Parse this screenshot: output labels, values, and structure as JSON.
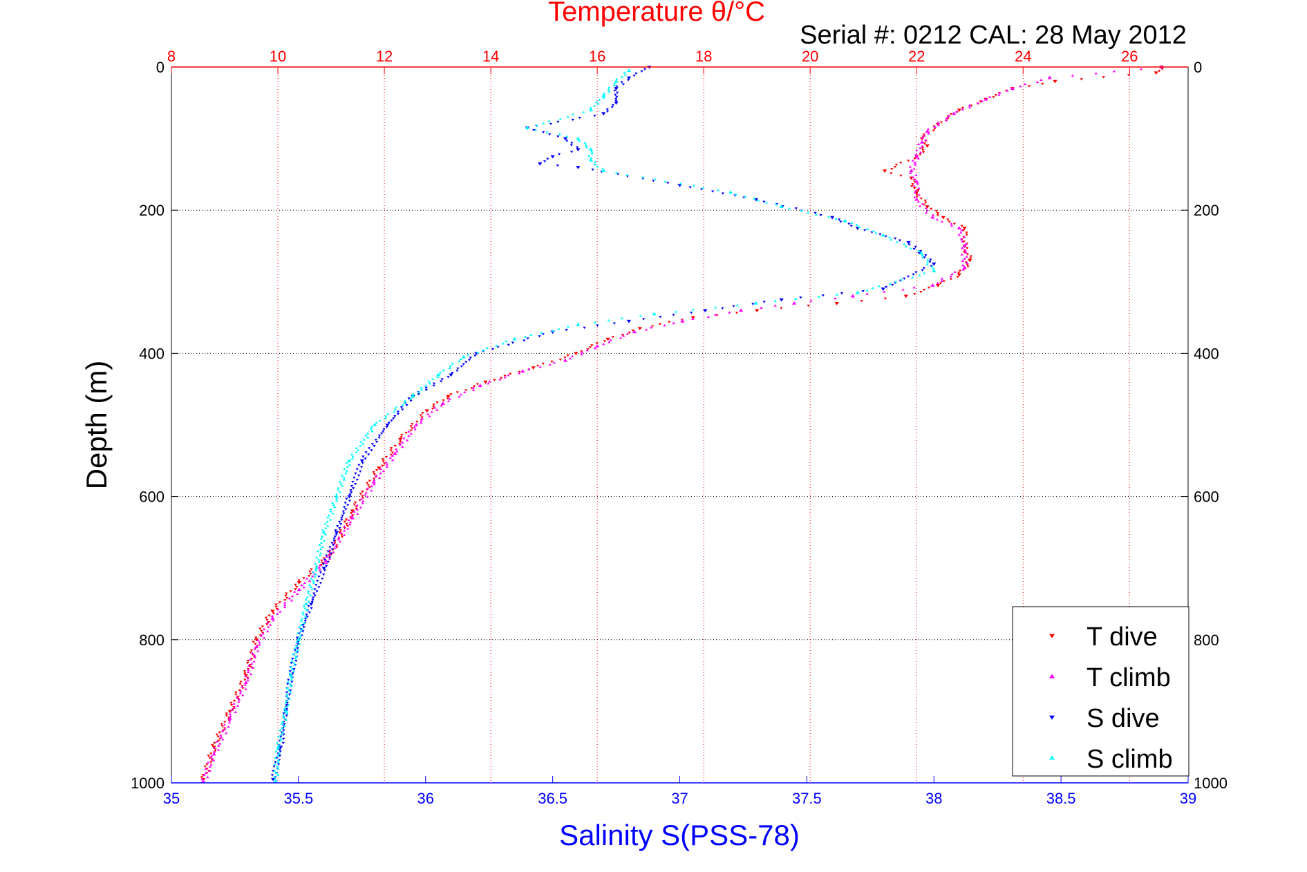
{
  "chart_data": {
    "type": "scatter",
    "title": "Temperature θ/°C",
    "subtitle": "Serial #: 0212  CAL: 28 May 2012",
    "ylabel": "Depth (m)",
    "xlabel": "Salinity S(PSS-78)",
    "ylim": [
      1000,
      0
    ],
    "y_ticks": [
      "0",
      "200",
      "400",
      "600",
      "800",
      "1000"
    ],
    "x_bottom": {
      "label": "Salinity S(PSS-78)",
      "lim": [
        35,
        39
      ],
      "ticks": [
        "35",
        "35.5",
        "36",
        "36.5",
        "37",
        "37.5",
        "38",
        "38.5",
        "39"
      ]
    },
    "x_top": {
      "label": "Temperature θ/°C",
      "lim": [
        8,
        27.1
      ],
      "ticks": [
        "8",
        "10",
        "12",
        "14",
        "16",
        "18",
        "20",
        "22",
        "24",
        "26"
      ]
    },
    "grid": true,
    "legend_position": "bottom-right",
    "series": [
      {
        "name": "T dive",
        "axis": "temperature",
        "color": "#ff0000",
        "marker": "triangle-down",
        "points": [
          [
            26.6,
            0
          ],
          [
            26.5,
            8
          ],
          [
            24.6,
            20
          ],
          [
            23.8,
            30
          ],
          [
            23.3,
            45
          ],
          [
            22.8,
            60
          ],
          [
            22.4,
            80
          ],
          [
            22.1,
            100
          ],
          [
            22.2,
            110
          ],
          [
            22.0,
            125
          ],
          [
            21.4,
            145
          ],
          [
            21.9,
            155
          ],
          [
            22.0,
            175
          ],
          [
            22.2,
            195
          ],
          [
            22.5,
            210
          ],
          [
            22.9,
            225
          ],
          [
            22.9,
            250
          ],
          [
            23.0,
            270
          ],
          [
            22.8,
            290
          ],
          [
            22.4,
            305
          ],
          [
            21.8,
            320
          ],
          [
            20.5,
            330
          ],
          [
            19.0,
            340
          ],
          [
            17.8,
            350
          ],
          [
            16.8,
            365
          ],
          [
            16.2,
            380
          ],
          [
            15.6,
            400
          ],
          [
            14.8,
            420
          ],
          [
            13.9,
            440
          ],
          [
            13.2,
            460
          ],
          [
            12.8,
            480
          ],
          [
            12.3,
            520
          ],
          [
            11.9,
            560
          ],
          [
            11.4,
            620
          ],
          [
            11.0,
            680
          ],
          [
            10.4,
            720
          ],
          [
            9.9,
            760
          ],
          [
            9.6,
            800
          ],
          [
            9.4,
            850
          ],
          [
            9.1,
            900
          ],
          [
            8.8,
            950
          ],
          [
            8.6,
            995
          ]
        ]
      },
      {
        "name": "T climb",
        "axis": "temperature",
        "color": "#ff00ff",
        "marker": "triangle-up",
        "points": [
          [
            26.6,
            0
          ],
          [
            24.5,
            15
          ],
          [
            23.8,
            30
          ],
          [
            23.3,
            45
          ],
          [
            22.7,
            65
          ],
          [
            22.2,
            90
          ],
          [
            22.1,
            105
          ],
          [
            22.0,
            125
          ],
          [
            21.9,
            145
          ],
          [
            22.0,
            160
          ],
          [
            22.0,
            185
          ],
          [
            22.3,
            210
          ],
          [
            22.8,
            225
          ],
          [
            22.9,
            250
          ],
          [
            22.9,
            280
          ],
          [
            22.3,
            305
          ],
          [
            20.8,
            320
          ],
          [
            19.7,
            330
          ],
          [
            18.7,
            340
          ],
          [
            17.6,
            355
          ],
          [
            16.7,
            370
          ],
          [
            16.0,
            390
          ],
          [
            15.4,
            410
          ],
          [
            14.6,
            425
          ],
          [
            13.8,
            445
          ],
          [
            13.1,
            470
          ],
          [
            12.6,
            500
          ],
          [
            12.2,
            540
          ],
          [
            11.8,
            580
          ],
          [
            11.4,
            630
          ],
          [
            10.9,
            690
          ],
          [
            10.4,
            730
          ],
          [
            9.9,
            770
          ],
          [
            9.6,
            810
          ],
          [
            9.4,
            860
          ],
          [
            9.1,
            910
          ],
          [
            8.8,
            960
          ],
          [
            8.6,
            998
          ]
        ]
      },
      {
        "name": "S dive",
        "axis": "salinity",
        "color": "#0000ff",
        "marker": "triangle-down",
        "points": [
          [
            36.88,
            0
          ],
          [
            36.8,
            15
          ],
          [
            36.75,
            30
          ],
          [
            36.75,
            50
          ],
          [
            36.7,
            65
          ],
          [
            36.4,
            85
          ],
          [
            36.55,
            100
          ],
          [
            36.6,
            115
          ],
          [
            36.5,
            125
          ],
          [
            36.45,
            135
          ],
          [
            36.6,
            140
          ],
          [
            37.0,
            165
          ],
          [
            37.3,
            185
          ],
          [
            37.6,
            210
          ],
          [
            37.7,
            225
          ],
          [
            37.9,
            245
          ],
          [
            38.0,
            275
          ],
          [
            37.8,
            310
          ],
          [
            37.4,
            325
          ],
          [
            37.1,
            340
          ],
          [
            36.8,
            355
          ],
          [
            36.5,
            370
          ],
          [
            36.2,
            400
          ],
          [
            36.1,
            430
          ],
          [
            35.95,
            460
          ],
          [
            35.85,
            500
          ],
          [
            35.75,
            550
          ],
          [
            35.7,
            600
          ],
          [
            35.65,
            650
          ],
          [
            35.6,
            700
          ],
          [
            35.55,
            750
          ],
          [
            35.5,
            800
          ],
          [
            35.47,
            850
          ],
          [
            35.45,
            900
          ],
          [
            35.43,
            950
          ],
          [
            35.4,
            995
          ]
        ]
      },
      {
        "name": "S climb",
        "axis": "salinity",
        "color": "#00ffff",
        "marker": "triangle-up",
        "points": [
          [
            36.8,
            5
          ],
          [
            36.75,
            20
          ],
          [
            36.7,
            40
          ],
          [
            36.65,
            60
          ],
          [
            36.4,
            85
          ],
          [
            36.6,
            100
          ],
          [
            36.65,
            115
          ],
          [
            36.65,
            130
          ],
          [
            36.7,
            145
          ],
          [
            37.2,
            175
          ],
          [
            37.4,
            195
          ],
          [
            37.65,
            215
          ],
          [
            37.8,
            235
          ],
          [
            37.95,
            260
          ],
          [
            38.0,
            285
          ],
          [
            37.7,
            315
          ],
          [
            37.3,
            330
          ],
          [
            36.9,
            345
          ],
          [
            36.6,
            360
          ],
          [
            36.35,
            380
          ],
          [
            36.15,
            405
          ],
          [
            36.05,
            430
          ],
          [
            35.95,
            460
          ],
          [
            35.8,
            500
          ],
          [
            35.7,
            550
          ],
          [
            35.65,
            600
          ],
          [
            35.6,
            650
          ],
          [
            35.57,
            700
          ],
          [
            35.53,
            750
          ],
          [
            35.5,
            800
          ],
          [
            35.47,
            850
          ],
          [
            35.45,
            900
          ],
          [
            35.42,
            950
          ],
          [
            35.41,
            998
          ]
        ]
      }
    ],
    "legend": [
      "T dive",
      "T climb",
      "S dive",
      "S climb"
    ]
  }
}
